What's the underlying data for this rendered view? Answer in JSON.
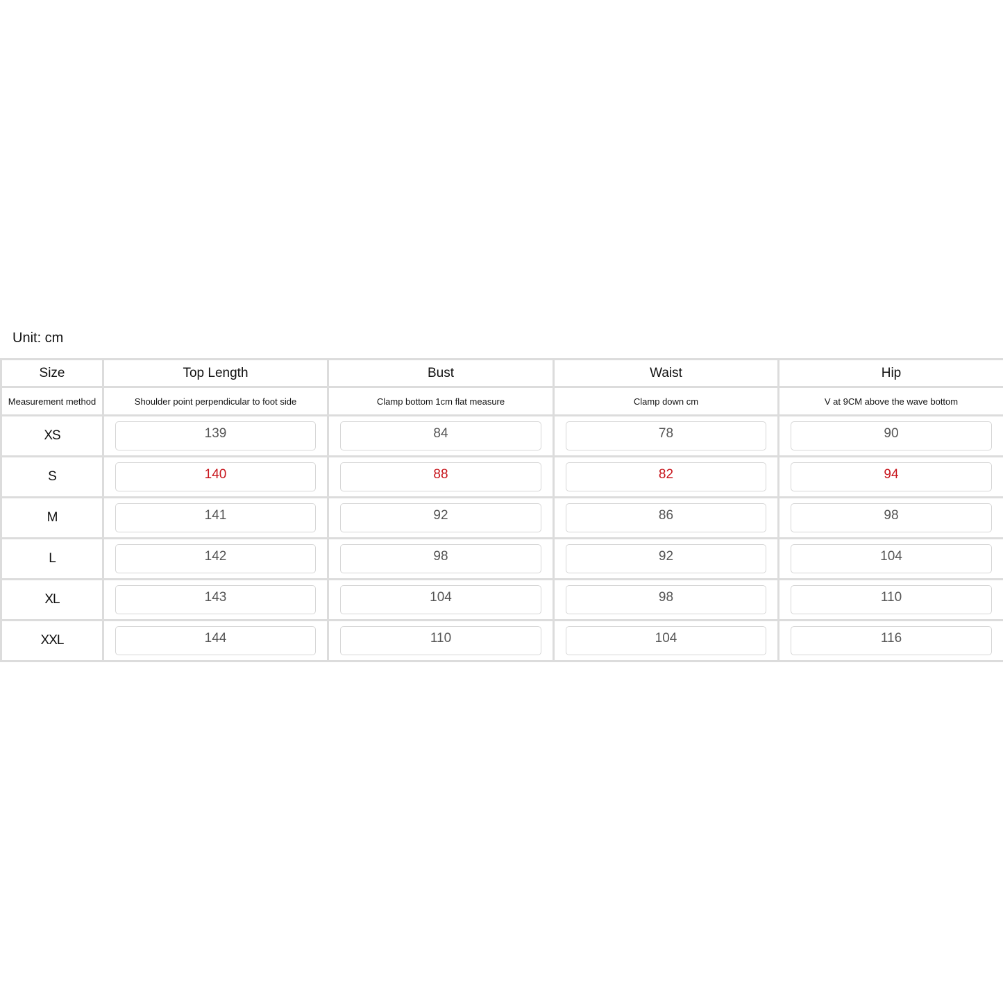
{
  "unit_label": "Unit: cm",
  "highlight_color": "#c8161d",
  "headers": [
    "Size",
    "Top Length",
    "Bust",
    "Waist",
    "Hip"
  ],
  "methods": [
    "Measurement method",
    "Shoulder point perpendicular to foot side",
    "Clamp bottom 1cm flat measure",
    "Clamp down cm",
    "V at 9CM above the wave bottom"
  ],
  "rows": [
    {
      "size": "XS",
      "values": [
        "139",
        "84",
        "78",
        "90"
      ],
      "highlight": false
    },
    {
      "size": "S",
      "values": [
        "140",
        "88",
        "82",
        "94"
      ],
      "highlight": true
    },
    {
      "size": "M",
      "values": [
        "141",
        "92",
        "86",
        "98"
      ],
      "highlight": false
    },
    {
      "size": "L",
      "values": [
        "142",
        "98",
        "92",
        "104"
      ],
      "highlight": false
    },
    {
      "size": "XL",
      "values": [
        "143",
        "104",
        "98",
        "110"
      ],
      "highlight": false
    },
    {
      "size": "XXL",
      "values": [
        "144",
        "110",
        "104",
        "116"
      ],
      "highlight": false
    }
  ]
}
